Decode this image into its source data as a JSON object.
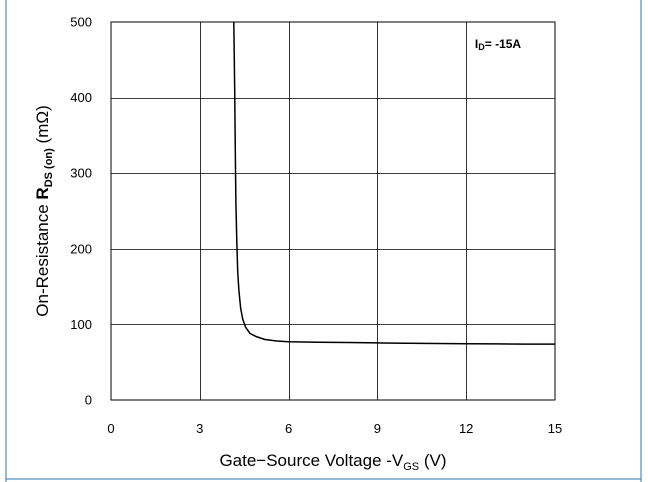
{
  "chart_data": {
    "type": "line",
    "title": "",
    "xlabel": {
      "prefix": "Gate−Source Voltage -V",
      "sub": "GS",
      "suffix": " (V)"
    },
    "ylabel": {
      "prefix": "On-Resistance ",
      "bold": "R",
      "sub": "DS (on)",
      "suffix": " (mΩ)"
    },
    "xlim": [
      0,
      15
    ],
    "ylim": [
      0,
      500
    ],
    "xticks": [
      0,
      3,
      6,
      9,
      12,
      15
    ],
    "yticks": [
      0,
      100,
      200,
      300,
      400,
      500
    ],
    "grid": true,
    "annotation": {
      "prefix": "I",
      "sub": "D",
      "suffix": "= -15A"
    },
    "series": [
      {
        "x": [
          4.15,
          4.18,
          4.2,
          4.22,
          4.25,
          4.28,
          4.32,
          4.38,
          4.45,
          4.55,
          4.7,
          4.9,
          5.2,
          5.6,
          6.0,
          7.0,
          8.0,
          9.0,
          10.0,
          11.0,
          12.0,
          13.0,
          14.0,
          15.0
        ],
        "y": [
          500,
          410,
          330,
          260,
          210,
          170,
          145,
          122,
          107,
          96,
          88,
          84,
          80,
          78,
          77,
          76.5,
          76,
          75.5,
          75,
          74.8,
          74.5,
          74.2,
          74,
          74
        ]
      }
    ],
    "colors": {
      "line": "#000000",
      "grid": "#000000",
      "frame_accent": "#2e74b5"
    }
  }
}
